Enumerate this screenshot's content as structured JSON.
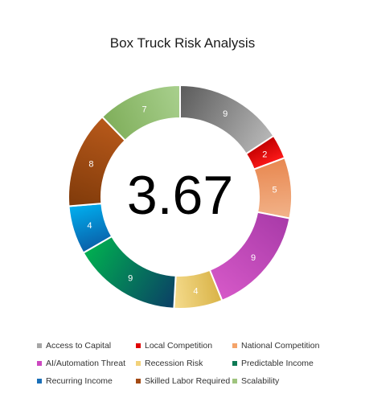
{
  "chart_data": {
    "type": "pie",
    "title": "Box Truck Risk Analysis",
    "center_value": "3.67",
    "donut": true,
    "legend_position": "bottom",
    "categories": [
      "Access to Capital",
      "Local Competition",
      "National Competition",
      "AI/Automation Threat",
      "Recession Risk",
      "Predictable Income",
      "Recurring Income",
      "Skilled Labor Required",
      "Scalability"
    ],
    "values": [
      9,
      2,
      5,
      9,
      4,
      9,
      4,
      8,
      7
    ],
    "colors": [
      [
        "#5a5a5a",
        "#b8b8b8"
      ],
      [
        "#c00000",
        "#ff1a1a"
      ],
      [
        "#e8874f",
        "#f2b38a"
      ],
      [
        "#a83aa8",
        "#d659c8"
      ],
      [
        "#d9b347",
        "#f5dc8e"
      ],
      [
        "#0b3e66",
        "#00b050"
      ],
      [
        "#0a5fa8",
        "#00b0f0"
      ],
      [
        "#7f3a0a",
        "#b8591a"
      ],
      [
        "#7fae5a",
        "#a9d08e"
      ]
    ],
    "legend_colors": [
      "#a6a6a6",
      "#e00000",
      "#f4a46a",
      "#cc48c0",
      "#f2d27a",
      "#0e7a55",
      "#1a6fb8",
      "#a34a14",
      "#9fc47e"
    ]
  }
}
